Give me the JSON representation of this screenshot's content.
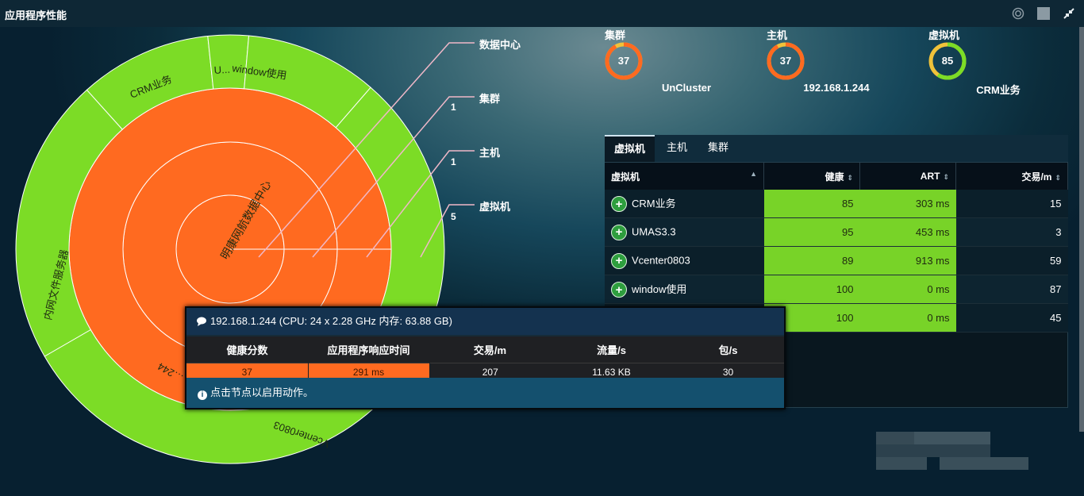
{
  "window": {
    "title": "应用程序性能"
  },
  "sunburst": {
    "center_label": "明康网航数据中心",
    "cluster_label": "…244",
    "vm_labels": [
      "CRM业务",
      "U...",
      "window使用",
      "内网文件服务器",
      "Vcenter0803"
    ],
    "colors": {
      "inner": "#ff6a20",
      "outer": "#7cdc26"
    }
  },
  "levels": [
    {
      "label": "数据中心",
      "count": ""
    },
    {
      "label": "集群",
      "count": "1"
    },
    {
      "label": "主机",
      "count": "1"
    },
    {
      "label": "虚拟机",
      "count": "5"
    }
  ],
  "gauges": [
    {
      "title": "集群",
      "value": "37",
      "fraction": 0.37,
      "name": "UnCluster",
      "color": "#ff6a20"
    },
    {
      "title": "主机",
      "value": "37",
      "fraction": 0.37,
      "name": "192.168.1.244",
      "color": "#ff6a20"
    },
    {
      "title": "虚拟机",
      "value": "85",
      "fraction": 0.85,
      "name": "CRM业务",
      "color": "#7cdc26"
    }
  ],
  "tabs": [
    {
      "label": "虚拟机"
    },
    {
      "label": "主机"
    },
    {
      "label": "集群"
    }
  ],
  "table": {
    "columns": [
      "虚拟机",
      "健康",
      "ART",
      "交易/m"
    ],
    "rows": [
      {
        "name": "CRM业务",
        "health": "85",
        "art": "303 ms",
        "tx": "15"
      },
      {
        "name": "UMAS3.3",
        "health": "95",
        "art": "453 ms",
        "tx": "3"
      },
      {
        "name": "Vcenter0803",
        "health": "89",
        "art": "913 ms",
        "tx": "59"
      },
      {
        "name": "window使用",
        "health": "100",
        "art": "0 ms",
        "tx": "87"
      },
      {
        "name": "",
        "health": "100",
        "art": "0 ms",
        "tx": "45"
      }
    ]
  },
  "tooltip": {
    "header": "192.168.1.244 (CPU: 24 x 2.28 GHz 内存: 63.88 GB)",
    "columns": [
      "健康分数",
      "应用程序响应时间",
      "交易/m",
      "流量/s",
      "包/s"
    ],
    "values": [
      "37",
      "291 ms",
      "207",
      "11.63 KB",
      "30"
    ],
    "footer": "点击节点以启用动作。"
  }
}
